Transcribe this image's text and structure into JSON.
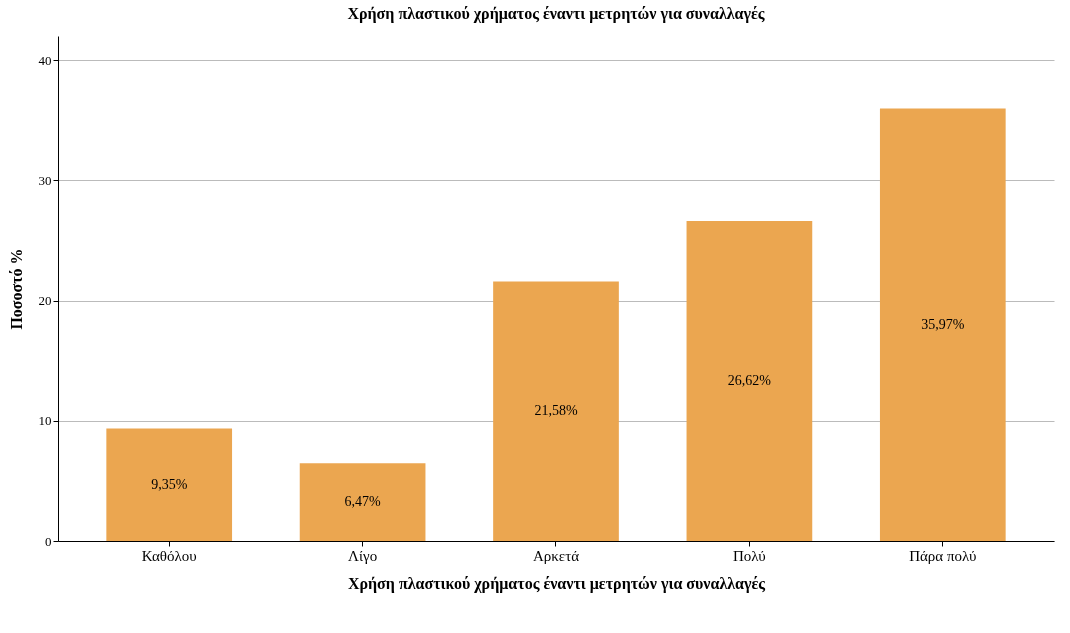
{
  "chart_data": {
    "type": "bar",
    "title": "Χρήση πλαστικού χρήματος έναντι μετρητών για συναλλαγές",
    "xlabel": "Χρήση πλαστικού χρήματος έναντι μετρητών για συναλλαγές",
    "ylabel": "Ποσοστό %",
    "categories": [
      "Καθόλου",
      "Λίγο",
      "Αρκετά",
      "Πολύ",
      "Πάρα πολύ"
    ],
    "values": [
      9.35,
      6.47,
      21.58,
      26.62,
      35.97
    ],
    "value_labels": [
      "9,35%",
      "6,47%",
      "21,58%",
      "26,62%",
      "35,97%"
    ],
    "color": "#eba650",
    "ylim": [
      0,
      42
    ],
    "yticks": [
      0,
      10,
      20,
      30,
      40
    ],
    "grid": "y"
  }
}
